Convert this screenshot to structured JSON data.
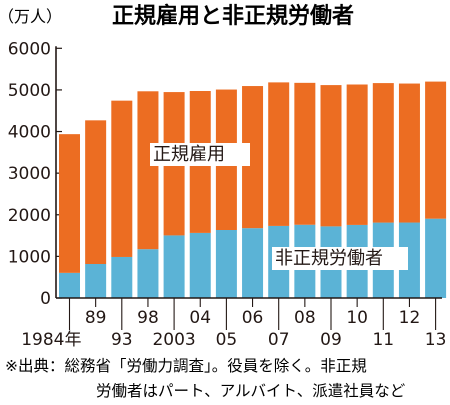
{
  "title": "正規雇用と非正規労働者",
  "unit_label": "（万人）",
  "source": {
    "line1": "※出典：総務省「労働力調査」。役員を除く。非正規",
    "line2": "労働者はパート、アルバイト、派遣社員など"
  },
  "colors": {
    "regular": "#ec6d22",
    "nonregular": "#5bb3d6",
    "axis": "#231815",
    "text": "#231815",
    "label_bg": "#ffffff"
  },
  "chart_data": {
    "type": "bar",
    "stacked": true,
    "title": "正規雇用と非正規労働者",
    "ylabel": "（万人）",
    "xlabel": "",
    "ylim": [
      0,
      6000
    ],
    "yticks": [
      0,
      1000,
      2000,
      3000,
      4000,
      5000,
      6000
    ],
    "grid": false,
    "legend": "inline labels inside bars",
    "categories": [
      "1984年",
      "89",
      "93",
      "98",
      "2003",
      "04",
      "05",
      "06",
      "07",
      "08",
      "09",
      "10",
      "11",
      "12",
      "13"
    ],
    "category_row": [
      1,
      2,
      1,
      2,
      1,
      2,
      1,
      2,
      1,
      2,
      1,
      2,
      1,
      2,
      1
    ],
    "series": [
      {
        "name": "非正規労働者",
        "color": "#5bb3d6",
        "values": [
          604,
          817,
          986,
          1173,
          1504,
          1564,
          1634,
          1678,
          1732,
          1760,
          1721,
          1756,
          1812,
          1813,
          1906
        ]
      },
      {
        "name": "正規雇用",
        "color": "#ec6d22",
        "values": [
          3333,
          3452,
          3756,
          3794,
          3444,
          3410,
          3375,
          3415,
          3449,
          3410,
          3395,
          3374,
          3352,
          3340,
          3294
        ]
      }
    ]
  }
}
